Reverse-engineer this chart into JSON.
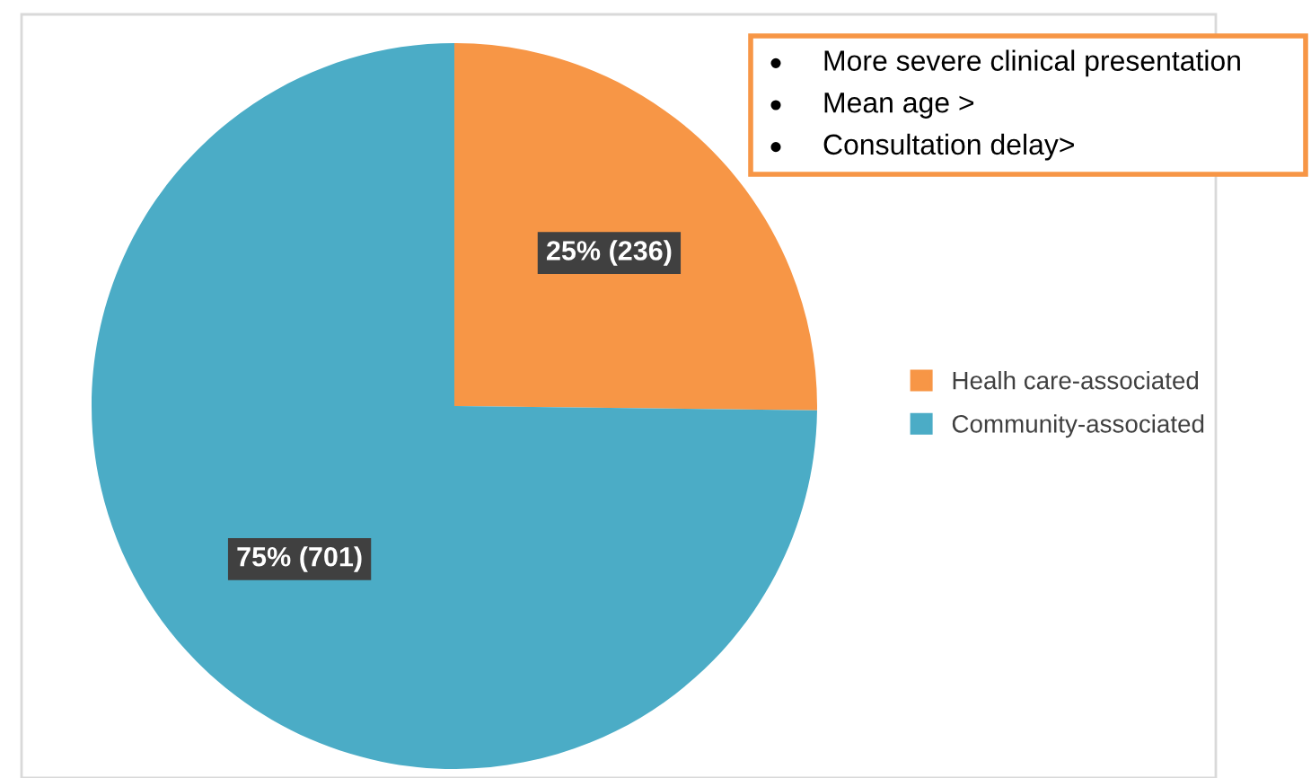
{
  "chart_data": {
    "type": "pie",
    "categories": [
      "Healh care-associated",
      "Community-associated"
    ],
    "values": [
      236,
      701
    ],
    "colors": [
      "#f79646",
      "#4bacc6"
    ],
    "value_labels": [
      "25% (236)",
      "75% (701)"
    ],
    "legend": "right",
    "annotations": [
      "More severe clinical presentation",
      "Mean age >",
      "Consultation delay>"
    ]
  }
}
